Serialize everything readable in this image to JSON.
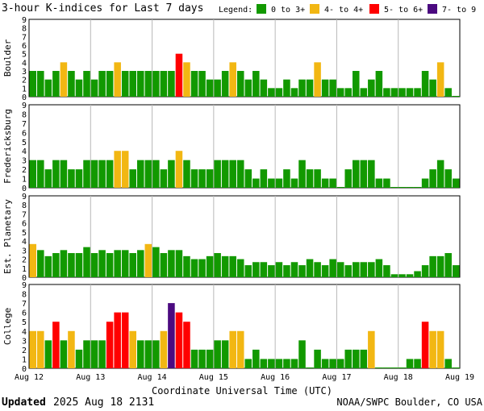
{
  "header": {
    "title": "3-hour K-indices for Last 7 days",
    "legend_label": "Legend:",
    "legend": [
      {
        "label": "0 to 3+",
        "color": "#129900"
      },
      {
        "label": "4- to 4+",
        "color": "#f2b713"
      },
      {
        "label": "5- to 6+",
        "color": "#ff0000"
      },
      {
        "label": "7- to 9",
        "color": "#4b0a80"
      }
    ]
  },
  "footer": {
    "updated_label": "Updated",
    "updated_value": "2025 Aug 18 2131",
    "source": "NOAA/SWPC Boulder, CO USA"
  },
  "chart_data": [
    {
      "type": "bar",
      "ylabel": "Boulder",
      "ylim": [
        0,
        9
      ],
      "x_ticks": [
        "Aug 12",
        "Aug 13",
        "Aug 14",
        "Aug 15",
        "Aug 16",
        "Aug 17",
        "Aug 18",
        "Aug 19"
      ],
      "values": [
        3,
        3,
        2,
        3,
        4,
        3,
        2,
        3,
        2,
        3,
        3,
        4,
        3,
        3,
        3,
        3,
        3,
        3,
        3,
        5,
        4,
        3,
        3,
        2,
        2,
        3,
        4,
        3,
        2,
        3,
        2,
        1,
        1,
        2,
        1,
        2,
        2,
        4,
        2,
        2,
        1,
        1,
        3,
        1,
        2,
        3,
        1,
        1,
        1,
        1,
        1,
        3,
        2,
        4,
        1,
        0
      ]
    },
    {
      "type": "bar",
      "ylabel": "Fredericksburg",
      "ylim": [
        0,
        9
      ],
      "x_ticks": [
        "Aug 12",
        "Aug 13",
        "Aug 14",
        "Aug 15",
        "Aug 16",
        "Aug 17",
        "Aug 18",
        "Aug 19"
      ],
      "values": [
        3,
        3,
        2,
        3,
        3,
        2,
        2,
        3,
        3,
        3,
        3,
        4,
        4,
        2,
        3,
        3,
        3,
        2,
        3,
        4,
        3,
        2,
        2,
        2,
        3,
        3,
        3,
        3,
        2,
        1,
        2,
        1,
        1,
        2,
        1,
        3,
        2,
        2,
        1,
        1,
        0,
        2,
        3,
        3,
        3,
        1,
        1,
        0,
        0,
        0,
        0,
        1,
        2,
        3,
        2,
        1,
        0
      ]
    },
    {
      "type": "bar",
      "ylabel": "Est. Planetary",
      "ylim": [
        0,
        9
      ],
      "x_ticks": [
        "Aug 12",
        "Aug 13",
        "Aug 14",
        "Aug 15",
        "Aug 16",
        "Aug 17",
        "Aug 18",
        "Aug 19"
      ],
      "values": [
        3.67,
        3,
        2.33,
        2.67,
        3,
        2.67,
        2.67,
        3.33,
        2.67,
        3,
        2.67,
        3,
        3,
        2.67,
        3,
        3.67,
        3.33,
        2.67,
        3,
        3,
        2.33,
        2,
        2,
        2.33,
        2.67,
        2.33,
        2.33,
        2,
        1.33,
        1.67,
        1.67,
        1.33,
        1.67,
        1.33,
        1.67,
        1.33,
        2,
        1.67,
        1.33,
        2,
        1.67,
        1.33,
        1.67,
        1.67,
        1.67,
        2,
        1.33,
        0.33,
        0.33,
        0.33,
        0.67,
        1.33,
        2.33,
        2.33,
        2.67,
        1.33,
        0
      ]
    },
    {
      "type": "bar",
      "ylabel": "College",
      "ylim": [
        0,
        9
      ],
      "x_ticks": [
        "Aug 12",
        "Aug 13",
        "Aug 14",
        "Aug 15",
        "Aug 16",
        "Aug 17",
        "Aug 18",
        "Aug 19"
      ],
      "values": [
        4,
        4,
        3,
        5,
        3,
        4,
        2,
        3,
        3,
        3,
        5,
        6,
        6,
        4,
        3,
        3,
        3,
        4,
        7,
        6,
        5,
        2,
        2,
        2,
        3,
        3,
        4,
        4,
        1,
        2,
        1,
        1,
        1,
        1,
        1,
        3,
        0,
        2,
        1,
        1,
        1,
        2,
        2,
        2,
        4,
        0,
        0,
        0,
        0,
        1,
        1,
        5,
        4,
        4,
        1,
        0
      ]
    }
  ],
  "xlabel": "Coordinate Universal Time (UTC)"
}
